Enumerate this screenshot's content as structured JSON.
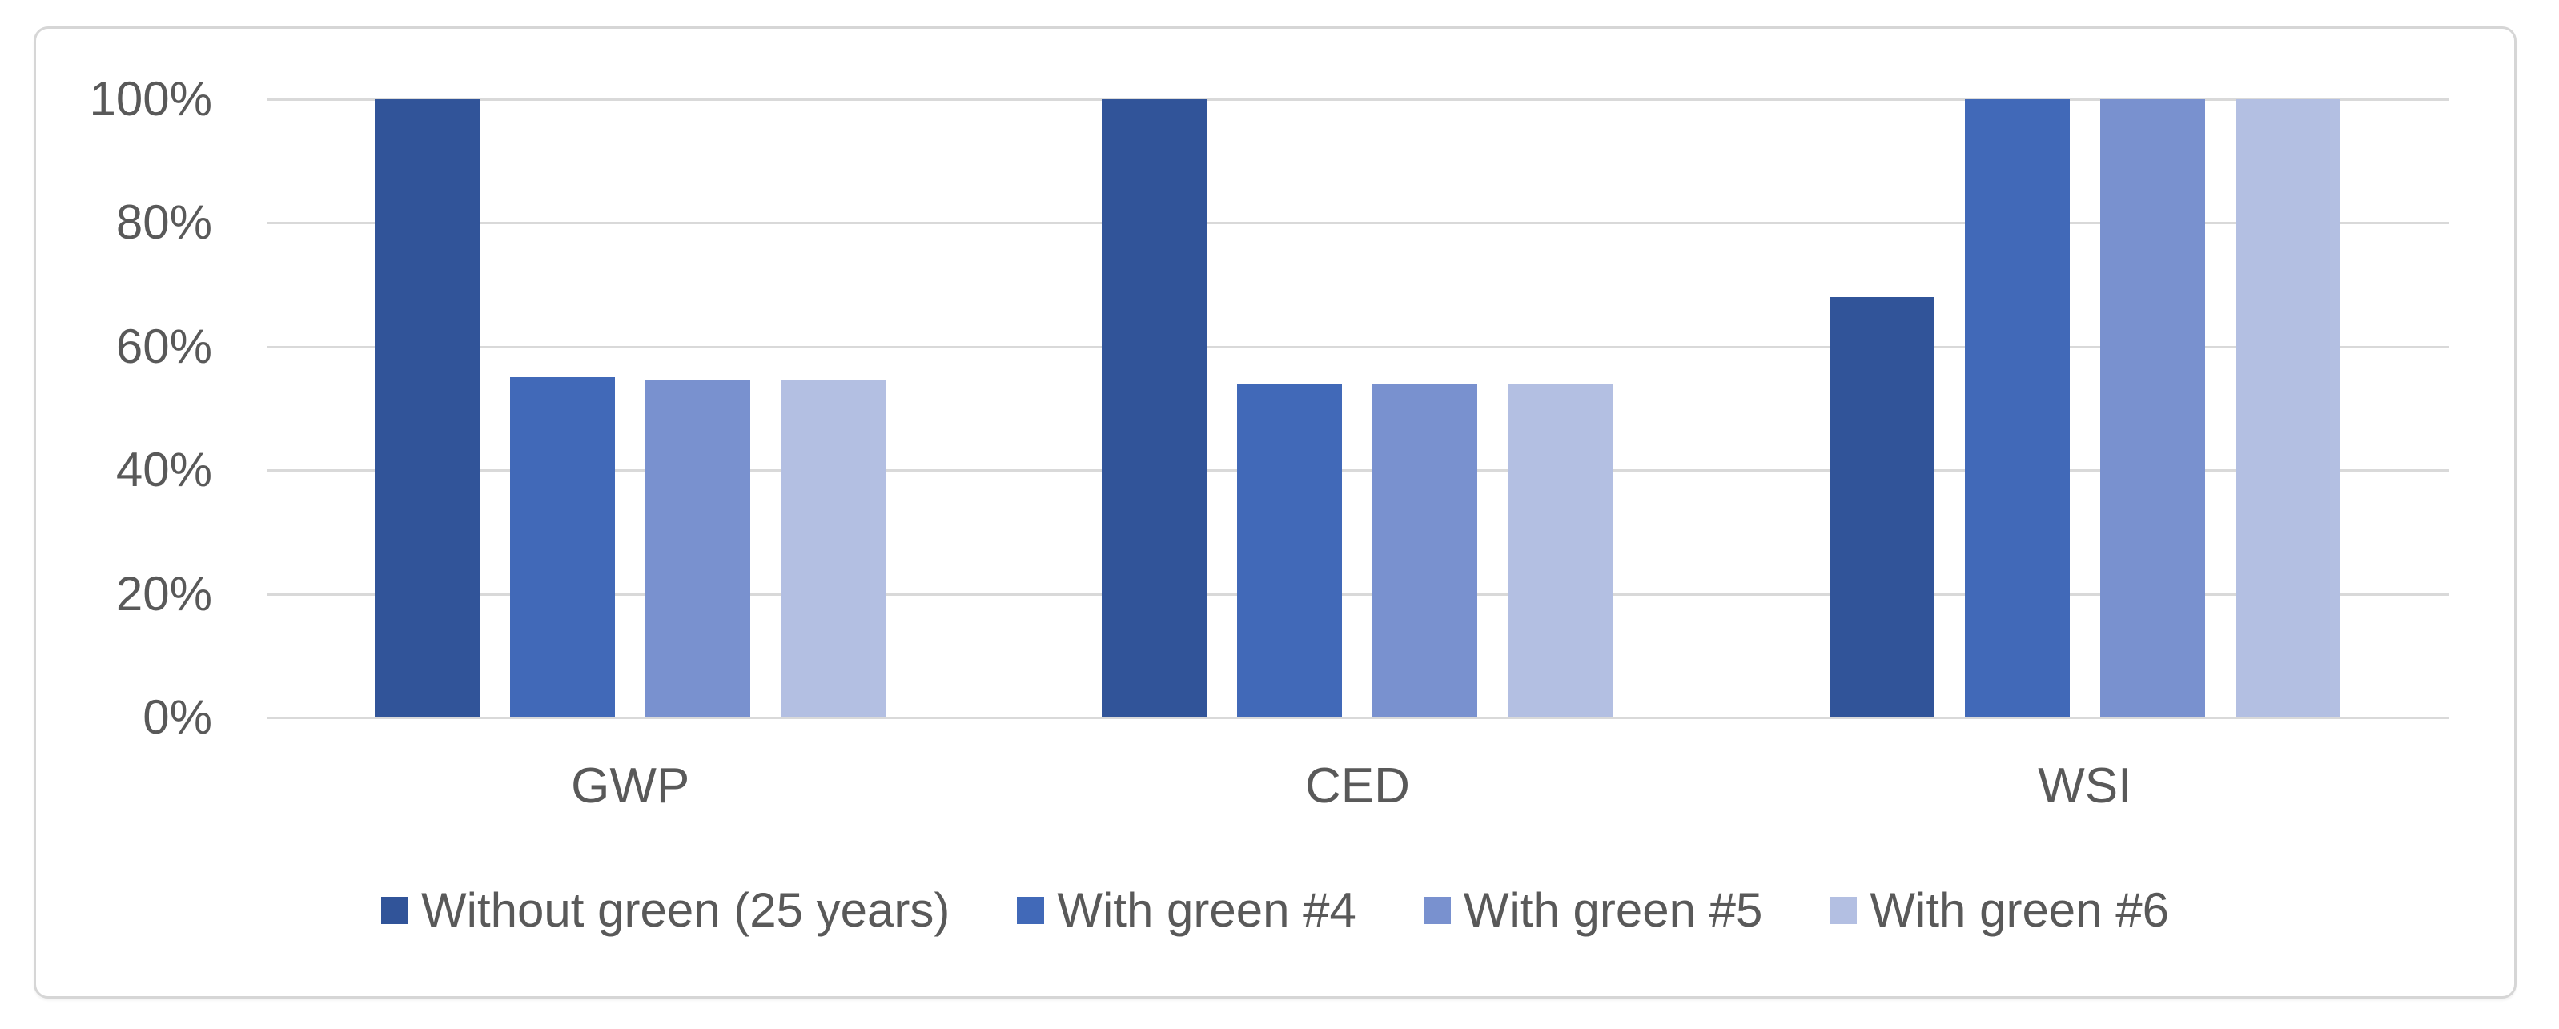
{
  "page": {
    "background": "#ffffff"
  },
  "chart_frame": {
    "border_color": "#d6d6d6",
    "background": "#ffffff"
  },
  "chart_data": {
    "type": "bar",
    "title": "",
    "xlabel": "",
    "ylabel": "",
    "categories": [
      "GWP",
      "CED",
      "WSI"
    ],
    "series": [
      {
        "name": "Without green (25 years)",
        "color": "#315499",
        "values": [
          100,
          100,
          68
        ]
      },
      {
        "name": "With green #4",
        "color": "#4169B8",
        "values": [
          55,
          54,
          100
        ]
      },
      {
        "name": "With green #5",
        "color": "#7991CF",
        "values": [
          54.5,
          54,
          100
        ]
      },
      {
        "name": "With green #6",
        "color": "#B3BFE2",
        "values": [
          54.5,
          54,
          100
        ]
      }
    ],
    "ylim": [
      0,
      100
    ],
    "ytick_values": [
      100,
      80,
      60,
      40,
      20,
      0
    ],
    "ytick_labels": [
      "100%",
      "80%",
      "60%",
      "40%",
      "20%",
      "0%"
    ],
    "grid": true,
    "gridline_color": "#d9d9d9",
    "axis_text_color": "#595959",
    "legend_position": "bottom"
  }
}
